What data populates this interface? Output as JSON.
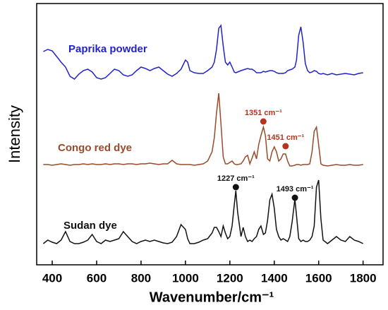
{
  "chart_data": {
    "type": "line",
    "y_label": "Intensity",
    "x_label": "Wavenumber/cm⁻¹",
    "x": [
      360,
      380,
      400,
      420,
      440,
      460,
      480,
      500,
      520,
      540,
      560,
      580,
      600,
      620,
      640,
      660,
      680,
      700,
      720,
      740,
      760,
      780,
      800,
      820,
      840,
      860,
      880,
      900,
      920,
      940,
      960,
      980,
      1000,
      1010,
      1020,
      1040,
      1060,
      1080,
      1100,
      1120,
      1130,
      1140,
      1150,
      1160,
      1170,
      1180,
      1190,
      1200,
      1210,
      1220,
      1227,
      1235,
      1250,
      1260,
      1270,
      1280,
      1290,
      1300,
      1310,
      1320,
      1330,
      1340,
      1351,
      1360,
      1370,
      1380,
      1390,
      1400,
      1410,
      1420,
      1430,
      1440,
      1451,
      1460,
      1470,
      1480,
      1493,
      1500,
      1510,
      1520,
      1530,
      1540,
      1550,
      1560,
      1570,
      1580,
      1590,
      1600,
      1610,
      1620,
      1640,
      1660,
      1680,
      1700,
      1720,
      1740,
      1760,
      1780,
      1800
    ],
    "series": [
      {
        "name": "Paprika powder",
        "color": "#2222cc",
        "values": [
          302,
          305,
          303,
          295,
          287,
          280,
          267,
          263,
          270,
          275,
          277,
          273,
          265,
          263,
          265,
          271,
          277,
          275,
          269,
          267,
          269,
          275,
          280,
          278,
          275,
          278,
          280,
          275,
          270,
          267,
          271,
          277,
          290,
          287,
          275,
          272,
          271,
          271,
          275,
          280,
          287,
          305,
          335,
          339,
          310,
          287,
          283,
          287,
          280,
          273,
          272,
          273,
          275,
          276,
          277,
          278,
          277,
          277,
          275,
          272,
          272,
          272,
          274,
          273,
          274,
          275,
          275,
          274,
          272,
          271,
          271,
          271,
          272,
          275,
          276,
          277,
          280,
          290,
          325,
          337,
          315,
          285,
          275,
          272,
          273,
          275,
          274,
          271,
          270,
          271,
          269,
          271,
          269,
          270,
          271,
          270,
          269,
          271,
          272
        ]
      },
      {
        "name": "Congo red dye",
        "color": "#9a4a2a",
        "values": [
          142,
          142,
          141,
          142,
          143,
          142,
          141,
          142,
          142,
          143,
          142,
          143,
          142,
          142,
          143,
          142,
          143,
          143,
          142,
          143,
          143,
          142,
          143,
          143,
          144,
          143,
          142,
          143,
          143,
          148,
          143,
          142,
          142,
          142,
          142,
          141,
          142,
          143,
          147,
          160,
          180,
          215,
          243,
          200,
          153,
          143,
          143,
          145,
          147,
          143,
          142,
          142,
          143,
          147,
          153,
          155,
          143,
          151,
          160,
          150,
          170,
          183,
          195,
          183,
          150,
          147,
          160,
          167,
          160,
          147,
          150,
          157,
          157,
          147,
          140,
          140,
          141,
          142,
          142,
          141,
          142,
          142,
          142,
          143,
          160,
          189,
          195,
          170,
          143,
          141,
          140,
          141,
          142,
          141,
          141,
          142,
          141,
          141,
          142
        ]
      },
      {
        "name": "Sudan dye",
        "color": "#111111",
        "values": [
          30,
          35,
          32,
          30,
          35,
          47,
          33,
          30,
          30,
          32,
          35,
          43,
          33,
          30,
          35,
          33,
          35,
          37,
          47,
          40,
          33,
          30,
          33,
          35,
          33,
          35,
          33,
          31,
          30,
          32,
          40,
          57,
          50,
          37,
          30,
          30,
          32,
          35,
          37,
          45,
          53,
          53,
          47,
          40,
          55,
          45,
          37,
          40,
          55,
          85,
          105,
          75,
          40,
          53,
          40,
          33,
          35,
          33,
          37,
          40,
          50,
          55,
          43,
          45,
          63,
          92,
          100,
          80,
          50,
          40,
          35,
          37,
          35,
          33,
          40,
          60,
          93,
          70,
          37,
          33,
          35,
          33,
          33,
          35,
          40,
          55,
          110,
          120,
          65,
          35,
          30,
          35,
          40,
          35,
          33,
          40,
          35,
          33,
          30
        ]
      }
    ],
    "annotations": [
      {
        "text": "1351 cm⁻¹",
        "x": 1351,
        "y": 203,
        "color": "#b5341f"
      },
      {
        "text": "1451 cm⁻¹",
        "x": 1451,
        "y": 168,
        "color": "#b5341f"
      },
      {
        "text": "1227 cm⁻¹",
        "x": 1227,
        "y": 110,
        "color": "#111111"
      },
      {
        "text": "1493 cm⁻¹",
        "x": 1493,
        "y": 95,
        "color": "#111111"
      }
    ],
    "xlim": [
      330,
      1890
    ],
    "ylim": [
      0,
      370
    ],
    "xticks": [
      400,
      600,
      800,
      1000,
      1200,
      1400,
      1600,
      1800
    ]
  }
}
